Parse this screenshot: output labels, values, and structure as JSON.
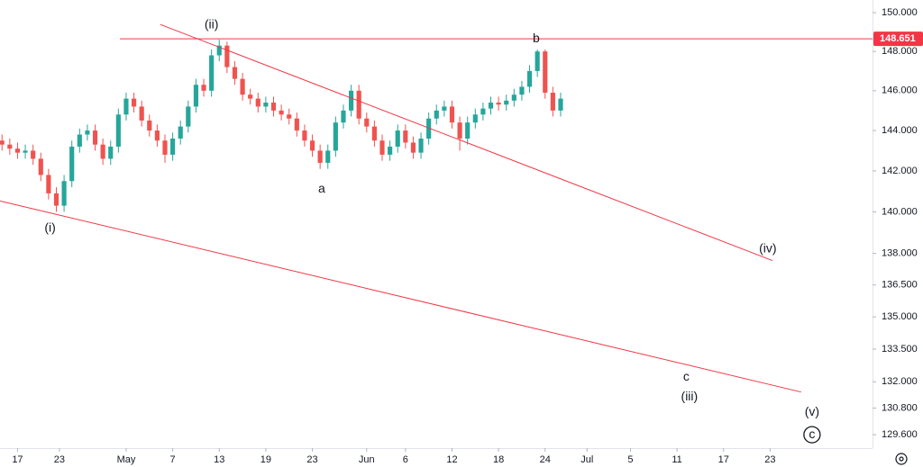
{
  "chart_data": {
    "type": "candlestick",
    "log_scale": true,
    "up_color": "#26a69a",
    "down_color": "#ef5350",
    "line_color": "#f23645",
    "xlim": [
      14.74,
      127.2
    ],
    "ylim": [
      129.0,
      150.66
    ],
    "xticks": [
      {
        "value": 17,
        "label": "17"
      },
      {
        "value": 22.4,
        "label": "23"
      },
      {
        "value": 31,
        "label": "May"
      },
      {
        "value": 37,
        "label": "7"
      },
      {
        "value": 43,
        "label": "13"
      },
      {
        "value": 49,
        "label": "19"
      },
      {
        "value": 55,
        "label": "23"
      },
      {
        "value": 62,
        "label": "Jun"
      },
      {
        "value": 67,
        "label": "6"
      },
      {
        "value": 73,
        "label": "12"
      },
      {
        "value": 79,
        "label": "18"
      },
      {
        "value": 85,
        "label": "24"
      },
      {
        "value": 90.4,
        "label": "Jul"
      },
      {
        "value": 96,
        "label": "5"
      },
      {
        "value": 102,
        "label": "11"
      },
      {
        "value": 108,
        "label": "17"
      },
      {
        "value": 114,
        "label": "23"
      }
    ],
    "yticks": [
      {
        "value": 150,
        "label": "150.000"
      },
      {
        "value": 148,
        "label": "148.000"
      },
      {
        "value": 146,
        "label": "146.000"
      },
      {
        "value": 144,
        "label": "144.000"
      },
      {
        "value": 142,
        "label": "142.000"
      },
      {
        "value": 140,
        "label": "140.000"
      },
      {
        "value": 138,
        "label": "138.000"
      },
      {
        "value": 136.5,
        "label": "136.500"
      },
      {
        "value": 135,
        "label": "135.000"
      },
      {
        "value": 133.5,
        "label": "133.500"
      },
      {
        "value": 132,
        "label": "132.000"
      },
      {
        "value": 130.8,
        "label": "130.800"
      },
      {
        "value": 129.6,
        "label": "129.600"
      }
    ],
    "x": [
      15,
      16,
      17,
      18,
      19,
      20,
      21,
      22,
      23,
      24,
      25,
      26,
      27,
      28,
      29,
      30,
      31,
      32,
      33,
      34,
      35,
      36,
      37,
      38,
      39,
      40,
      41,
      42,
      43,
      44,
      45,
      46,
      47,
      48,
      49,
      50,
      51,
      52,
      53,
      54,
      55,
      56,
      57,
      58,
      59,
      60,
      61,
      62,
      63,
      64,
      65,
      66,
      67,
      68,
      69,
      70,
      71,
      72,
      73,
      74,
      75,
      76,
      77,
      78,
      79,
      80,
      81,
      82,
      83,
      84,
      85,
      86,
      87
    ],
    "ohlc": [
      [
        143.5,
        143.8,
        143.0,
        143.3
      ],
      [
        143.3,
        143.6,
        142.8,
        143.1
      ],
      [
        143.1,
        143.4,
        142.6,
        142.9
      ],
      [
        142.9,
        143.3,
        142.6,
        143.0
      ],
      [
        143.0,
        143.3,
        142.3,
        142.6
      ],
      [
        142.6,
        142.9,
        141.5,
        141.8
      ],
      [
        141.8,
        142.1,
        140.6,
        140.9
      ],
      [
        140.9,
        141.2,
        140.0,
        140.3
      ],
      [
        140.3,
        141.8,
        140.0,
        141.5
      ],
      [
        141.5,
        143.5,
        141.2,
        143.2
      ],
      [
        143.2,
        144.1,
        142.9,
        143.8
      ],
      [
        143.8,
        144.3,
        143.5,
        144.0
      ],
      [
        144.0,
        144.3,
        143.0,
        143.3
      ],
      [
        143.3,
        143.6,
        142.3,
        142.6
      ],
      [
        142.6,
        143.5,
        142.3,
        143.2
      ],
      [
        143.2,
        145.1,
        142.9,
        144.8
      ],
      [
        144.8,
        145.9,
        144.5,
        145.6
      ],
      [
        145.6,
        145.9,
        144.9,
        145.2
      ],
      [
        145.2,
        145.5,
        144.2,
        144.5
      ],
      [
        144.5,
        144.8,
        143.7,
        144.0
      ],
      [
        144.0,
        144.3,
        143.2,
        143.5
      ],
      [
        143.5,
        143.8,
        142.4,
        142.8
      ],
      [
        142.8,
        143.9,
        142.5,
        143.6
      ],
      [
        143.6,
        144.5,
        143.3,
        144.2
      ],
      [
        144.2,
        145.5,
        143.9,
        145.2
      ],
      [
        145.2,
        146.6,
        144.9,
        146.3
      ],
      [
        146.3,
        146.6,
        145.7,
        146.0
      ],
      [
        146.0,
        148.1,
        145.7,
        147.8
      ],
      [
        147.8,
        148.6,
        147.5,
        148.3
      ],
      [
        148.3,
        148.5,
        146.9,
        147.2
      ],
      [
        147.2,
        147.5,
        146.3,
        146.6
      ],
      [
        146.6,
        146.9,
        145.5,
        145.8
      ],
      [
        145.8,
        146.1,
        145.3,
        145.6
      ],
      [
        145.6,
        145.9,
        144.9,
        145.2
      ],
      [
        145.2,
        145.7,
        144.9,
        145.4
      ],
      [
        145.4,
        145.7,
        144.7,
        145.0
      ],
      [
        145.0,
        145.3,
        144.5,
        144.8
      ],
      [
        144.8,
        145.1,
        144.3,
        144.6
      ],
      [
        144.6,
        144.9,
        143.7,
        144.0
      ],
      [
        144.0,
        144.3,
        143.2,
        143.5
      ],
      [
        143.5,
        143.8,
        142.7,
        143.0
      ],
      [
        143.0,
        143.3,
        142.1,
        142.4
      ],
      [
        142.4,
        143.3,
        142.1,
        143.0
      ],
      [
        143.0,
        144.7,
        142.7,
        144.4
      ],
      [
        144.4,
        145.3,
        144.1,
        145.0
      ],
      [
        145.0,
        146.3,
        144.7,
        146.0
      ],
      [
        146.0,
        146.3,
        144.3,
        144.6
      ],
      [
        144.6,
        144.9,
        143.9,
        144.2
      ],
      [
        144.2,
        144.5,
        143.2,
        143.5
      ],
      [
        143.5,
        143.8,
        142.5,
        142.8
      ],
      [
        142.8,
        143.5,
        142.5,
        143.2
      ],
      [
        143.2,
        144.3,
        142.9,
        144.0
      ],
      [
        144.0,
        144.3,
        143.1,
        143.4
      ],
      [
        143.4,
        143.7,
        142.6,
        142.9
      ],
      [
        142.9,
        143.9,
        142.6,
        143.6
      ],
      [
        143.6,
        144.9,
        143.3,
        144.6
      ],
      [
        144.6,
        145.3,
        144.3,
        145.0
      ],
      [
        145.0,
        145.5,
        144.7,
        145.2
      ],
      [
        145.2,
        145.5,
        144.1,
        144.4
      ],
      [
        144.4,
        144.7,
        143.0,
        143.6
      ],
      [
        143.6,
        144.7,
        143.3,
        144.4
      ],
      [
        144.4,
        145.1,
        144.1,
        144.8
      ],
      [
        144.8,
        145.4,
        144.5,
        145.1
      ],
      [
        145.1,
        145.7,
        144.8,
        145.4
      ],
      [
        145.4,
        145.7,
        145.0,
        145.3
      ],
      [
        145.3,
        145.8,
        145.0,
        145.5
      ],
      [
        145.5,
        146.1,
        145.2,
        145.8
      ],
      [
        145.8,
        146.5,
        145.5,
        146.2
      ],
      [
        146.2,
        147.3,
        145.9,
        147.0
      ],
      [
        147.0,
        148.1,
        146.7,
        148.0
      ],
      [
        148.0,
        148.1,
        145.6,
        145.9
      ],
      [
        145.9,
        146.2,
        144.7,
        145.0
      ],
      [
        145.0,
        145.9,
        144.7,
        145.6
      ]
    ],
    "hline": {
      "value": 148.651,
      "label": "148.651",
      "x0": 30.2
    },
    "trendlines": [
      {
        "x": [
          35.4,
          114.3
        ],
        "y": [
          149.39,
          137.66
        ]
      },
      {
        "x": [
          14.74,
          118.0
        ],
        "y": [
          140.53,
          131.53
        ]
      }
    ],
    "annotations": [
      {
        "text": "(ii)",
        "x": 42.0,
        "y": 149.35
      },
      {
        "text": "b",
        "x": 83.85,
        "y": 148.65
      },
      {
        "text": "a",
        "x": 56.2,
        "y": 141.1
      },
      {
        "text": "(i)",
        "x": 21.2,
        "y": 139.2
      },
      {
        "text": "(iv)",
        "x": 113.7,
        "y": 138.2
      },
      {
        "text": "c",
        "x": 103.2,
        "y": 132.2
      },
      {
        "text": "(iii)",
        "x": 103.6,
        "y": 131.3
      },
      {
        "text": "(v)",
        "x": 119.4,
        "y": 130.6
      },
      {
        "text": "c",
        "x": 119.4,
        "y": 129.6,
        "circled": true
      }
    ]
  }
}
